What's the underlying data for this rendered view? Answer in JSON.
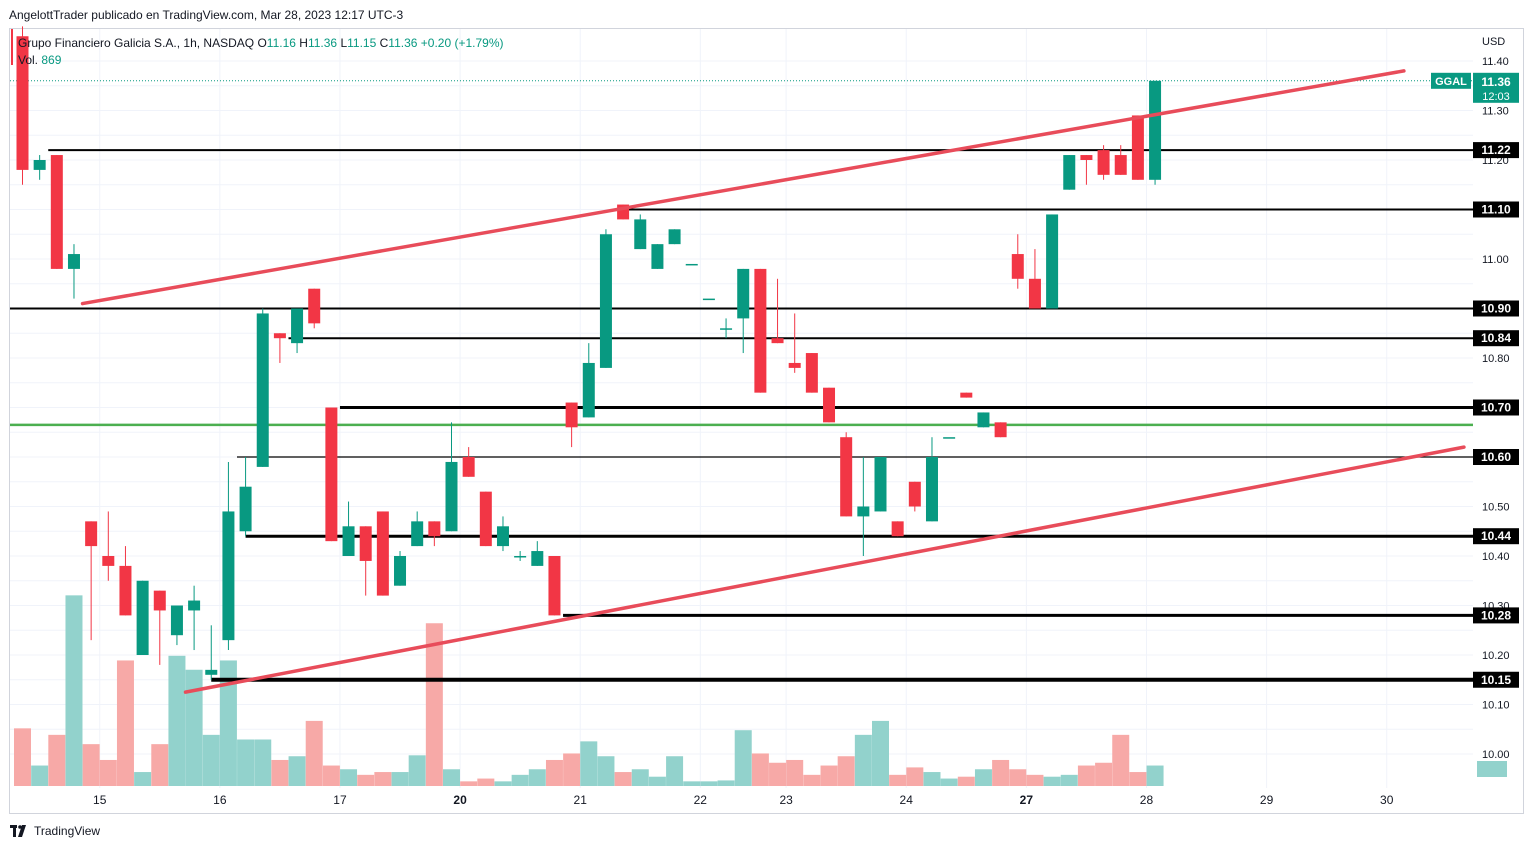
{
  "header": {
    "publisher_line": "AngelottTrader publicado en TradingView.com, Mar 28, 2023 12:17 UTC-3"
  },
  "legend": {
    "symbol_desc": "Grupo Financiero Galicia S.A., 1h, NASDAQ",
    "o_label": "O",
    "o_value": "11.16",
    "h_label": "H",
    "h_value": "11.36",
    "l_label": "L",
    "l_value": "11.15",
    "c_label": "C",
    "c_value": "11.36",
    "change": "+0.20 (+1.79%)",
    "vol_label": "Vol.",
    "vol_value": "869"
  },
  "footer": {
    "brand": "TradingView"
  },
  "colors": {
    "up": "#089981",
    "down": "#f23645",
    "up_vol": "#92d2cc",
    "down_vol": "#f7a9a7",
    "trend": "#e84c5a",
    "support_green": "#4caf50",
    "grid": "#f0f3fa"
  },
  "chart_data": {
    "type": "candlestick",
    "currency": "USD",
    "symbol": "GGAL",
    "price_label": "11.36",
    "countdown": "12:03",
    "volume_label": "869",
    "ylim": [
      9.95,
      11.44
    ],
    "y_ticks": [
      "11.40",
      "11.30",
      "11.20",
      "11.00",
      "10.90",
      "10.80",
      "10.50",
      "10.40",
      "10.30",
      "10.20",
      "10.10",
      "10.00"
    ],
    "x_ticks": [
      {
        "label": "15",
        "bar": 4.5,
        "bold": false
      },
      {
        "label": "16",
        "bar": 11.5,
        "bold": false
      },
      {
        "label": "17",
        "bar": 18.5,
        "bold": false
      },
      {
        "label": "20",
        "bar": 25.5,
        "bold": true
      },
      {
        "label": "21",
        "bar": 32.5,
        "bold": false
      },
      {
        "label": "22",
        "bar": 39.5,
        "bold": false
      },
      {
        "label": "23",
        "bar": 44.5,
        "bold": false
      },
      {
        "label": "24",
        "bar": 51.5,
        "bold": false
      },
      {
        "label": "27",
        "bar": 58.5,
        "bold": true
      },
      {
        "label": "28",
        "bar": 65.5,
        "bold": false
      },
      {
        "label": "29",
        "bar": 72.5,
        "bold": false
      },
      {
        "label": "30",
        "bar": 79.5,
        "bold": false
      }
    ],
    "candles": [
      {
        "o": 11.45,
        "h": 11.47,
        "l": 11.15,
        "c": 11.18,
        "v": 62
      },
      {
        "o": 11.18,
        "h": 11.21,
        "l": 11.16,
        "c": 11.2,
        "v": 22
      },
      {
        "o": 11.21,
        "h": 11.21,
        "l": 10.98,
        "c": 10.98,
        "v": 55
      },
      {
        "o": 10.98,
        "h": 11.03,
        "l": 10.92,
        "c": 11.01,
        "v": 205
      },
      {
        "o": 10.47,
        "h": 10.47,
        "l": 10.23,
        "c": 10.42,
        "v": 45
      },
      {
        "o": 10.4,
        "h": 10.49,
        "l": 10.35,
        "c": 10.38,
        "v": 28
      },
      {
        "o": 10.38,
        "h": 10.42,
        "l": 10.28,
        "c": 10.28,
        "v": 135
      },
      {
        "o": 10.2,
        "h": 10.35,
        "l": 10.2,
        "c": 10.35,
        "v": 15
      },
      {
        "o": 10.33,
        "h": 10.33,
        "l": 10.18,
        "c": 10.29,
        "v": 45
      },
      {
        "o": 10.24,
        "h": 10.3,
        "l": 10.22,
        "c": 10.3,
        "v": 140
      },
      {
        "o": 10.29,
        "h": 10.34,
        "l": 10.21,
        "c": 10.31,
        "v": 125
      },
      {
        "o": 10.16,
        "h": 10.26,
        "l": 10.15,
        "c": 10.17,
        "v": 55
      },
      {
        "o": 10.23,
        "h": 10.59,
        "l": 10.21,
        "c": 10.49,
        "v": 135
      },
      {
        "o": 10.45,
        "h": 10.6,
        "l": 10.44,
        "c": 10.54,
        "v": 50
      },
      {
        "o": 10.58,
        "h": 10.9,
        "l": 10.58,
        "c": 10.89,
        "v": 50
      },
      {
        "o": 10.85,
        "h": 10.85,
        "l": 10.79,
        "c": 10.84,
        "v": 28
      },
      {
        "o": 10.83,
        "h": 10.9,
        "l": 10.81,
        "c": 10.9,
        "v": 32
      },
      {
        "o": 10.94,
        "h": 10.94,
        "l": 10.86,
        "c": 10.87,
        "v": 70
      },
      {
        "o": 10.7,
        "h": 10.7,
        "l": 10.43,
        "c": 10.43,
        "v": 22
      },
      {
        "o": 10.4,
        "h": 10.51,
        "l": 10.4,
        "c": 10.46,
        "v": 18
      },
      {
        "o": 10.46,
        "h": 10.46,
        "l": 10.32,
        "c": 10.39,
        "v": 12
      },
      {
        "o": 10.49,
        "h": 10.49,
        "l": 10.32,
        "c": 10.32,
        "v": 15
      },
      {
        "o": 10.34,
        "h": 10.41,
        "l": 10.34,
        "c": 10.4,
        "v": 15
      },
      {
        "o": 10.42,
        "h": 10.49,
        "l": 10.42,
        "c": 10.47,
        "v": 33
      },
      {
        "o": 10.47,
        "h": 10.47,
        "l": 10.42,
        "c": 10.44,
        "v": 175
      },
      {
        "o": 10.45,
        "h": 10.67,
        "l": 10.45,
        "c": 10.59,
        "v": 18
      },
      {
        "o": 10.6,
        "h": 10.62,
        "l": 10.56,
        "c": 10.56,
        "v": 5
      },
      {
        "o": 10.53,
        "h": 10.53,
        "l": 10.42,
        "c": 10.42,
        "v": 8
      },
      {
        "o": 10.42,
        "h": 10.48,
        "l": 10.41,
        "c": 10.46,
        "v": 5
      },
      {
        "o": 10.4,
        "h": 10.41,
        "l": 10.39,
        "c": 10.4,
        "v": 12
      },
      {
        "o": 10.38,
        "h": 10.43,
        "l": 10.38,
        "c": 10.41,
        "v": 18
      },
      {
        "o": 10.4,
        "h": 10.4,
        "l": 10.28,
        "c": 10.28,
        "v": 28
      },
      {
        "o": 10.71,
        "h": 10.71,
        "l": 10.62,
        "c": 10.66,
        "v": 35
      },
      {
        "o": 10.68,
        "h": 10.83,
        "l": 10.68,
        "c": 10.79,
        "v": 48
      },
      {
        "o": 10.78,
        "h": 11.06,
        "l": 10.78,
        "c": 11.05,
        "v": 32
      },
      {
        "o": 11.11,
        "h": 11.11,
        "l": 11.08,
        "c": 11.08,
        "v": 15
      },
      {
        "o": 11.02,
        "h": 11.09,
        "l": 11.02,
        "c": 11.08,
        "v": 18
      },
      {
        "o": 10.98,
        "h": 11.03,
        "l": 10.98,
        "c": 11.03,
        "v": 10
      },
      {
        "o": 11.03,
        "h": 11.06,
        "l": 11.03,
        "c": 11.06,
        "v": 32
      },
      {
        "o": 10.99,
        "h": 10.99,
        "l": 10.99,
        "c": 10.99,
        "v": 5
      },
      {
        "o": 10.92,
        "h": 10.92,
        "l": 10.92,
        "c": 10.92,
        "v": 5
      },
      {
        "o": 10.86,
        "h": 10.88,
        "l": 10.84,
        "c": 10.86,
        "v": 6
      },
      {
        "o": 10.88,
        "h": 10.98,
        "l": 10.81,
        "c": 10.98,
        "v": 60
      },
      {
        "o": 10.98,
        "h": 10.98,
        "l": 10.73,
        "c": 10.73,
        "v": 35
      },
      {
        "o": 10.84,
        "h": 10.96,
        "l": 10.83,
        "c": 10.83,
        "v": 25
      },
      {
        "o": 10.79,
        "h": 10.89,
        "l": 10.77,
        "c": 10.78,
        "v": 28
      },
      {
        "o": 10.81,
        "h": 10.81,
        "l": 10.73,
        "c": 10.73,
        "v": 12
      },
      {
        "o": 10.74,
        "h": 10.74,
        "l": 10.67,
        "c": 10.67,
        "v": 22
      },
      {
        "o": 10.64,
        "h": 10.65,
        "l": 10.48,
        "c": 10.48,
        "v": 32
      },
      {
        "o": 10.48,
        "h": 10.6,
        "l": 10.4,
        "c": 10.5,
        "v": 55
      },
      {
        "o": 10.49,
        "h": 10.6,
        "l": 10.49,
        "c": 10.6,
        "v": 70
      },
      {
        "o": 10.47,
        "h": 10.47,
        "l": 10.44,
        "c": 10.44,
        "v": 12
      },
      {
        "o": 10.55,
        "h": 10.55,
        "l": 10.49,
        "c": 10.5,
        "v": 20
      },
      {
        "o": 10.47,
        "h": 10.64,
        "l": 10.47,
        "c": 10.6,
        "v": 15
      },
      {
        "o": 10.64,
        "h": 10.64,
        "l": 10.64,
        "c": 10.64,
        "v": 8
      },
      {
        "o": 10.73,
        "h": 10.73,
        "l": 10.72,
        "c": 10.72,
        "v": 10
      },
      {
        "o": 10.66,
        "h": 10.69,
        "l": 10.66,
        "c": 10.69,
        "v": 18
      },
      {
        "o": 10.67,
        "h": 10.67,
        "l": 10.64,
        "c": 10.64,
        "v": 28
      },
      {
        "o": 11.01,
        "h": 11.05,
        "l": 10.94,
        "c": 10.96,
        "v": 18
      },
      {
        "o": 10.96,
        "h": 11.02,
        "l": 10.9,
        "c": 10.9,
        "v": 12
      },
      {
        "o": 10.9,
        "h": 11.09,
        "l": 10.9,
        "c": 11.09,
        "v": 10
      },
      {
        "o": 11.14,
        "h": 11.21,
        "l": 11.14,
        "c": 11.21,
        "v": 12
      },
      {
        "o": 11.21,
        "h": 11.21,
        "l": 11.15,
        "c": 11.2,
        "v": 22
      },
      {
        "o": 11.22,
        "h": 11.23,
        "l": 11.16,
        "c": 11.17,
        "v": 25
      },
      {
        "o": 11.21,
        "h": 11.23,
        "l": 11.17,
        "c": 11.17,
        "v": 55
      },
      {
        "o": 11.29,
        "h": 11.29,
        "l": 11.16,
        "c": 11.16,
        "v": 15
      },
      {
        "o": 11.16,
        "h": 11.36,
        "l": 11.15,
        "c": 11.36,
        "v": 22
      }
    ],
    "levels": [
      {
        "label": "11.22",
        "value": 11.22,
        "from_bar": 1.5,
        "width": 2
      },
      {
        "label": "11.10",
        "value": 11.1,
        "from_bar": 35,
        "width": 2
      },
      {
        "label": "10.90",
        "value": 10.9,
        "from_bar": -1,
        "width": 2
      },
      {
        "label": "10.84",
        "value": 10.84,
        "from_bar": 15.5,
        "width": 2
      },
      {
        "label": "10.70",
        "value": 10.7,
        "from_bar": 18.5,
        "width": 3
      },
      {
        "label": "10.60",
        "value": 10.6,
        "from_bar": 12.5,
        "width": 1.2
      },
      {
        "label": "10.44",
        "value": 10.44,
        "from_bar": 13,
        "width": 3
      },
      {
        "label": "10.28",
        "value": 10.28,
        "from_bar": 31.5,
        "width": 3
      },
      {
        "label": "10.15",
        "value": 10.15,
        "from_bar": 11,
        "width": 4
      }
    ],
    "green_level": 10.665,
    "current_price": 11.36,
    "trendlines": [
      {
        "x1": 3.5,
        "y1": 10.91,
        "x2": 80.5,
        "y2": 11.38
      },
      {
        "x1": 9.5,
        "y1": 10.125,
        "x2": 84,
        "y2": 10.62
      }
    ]
  }
}
